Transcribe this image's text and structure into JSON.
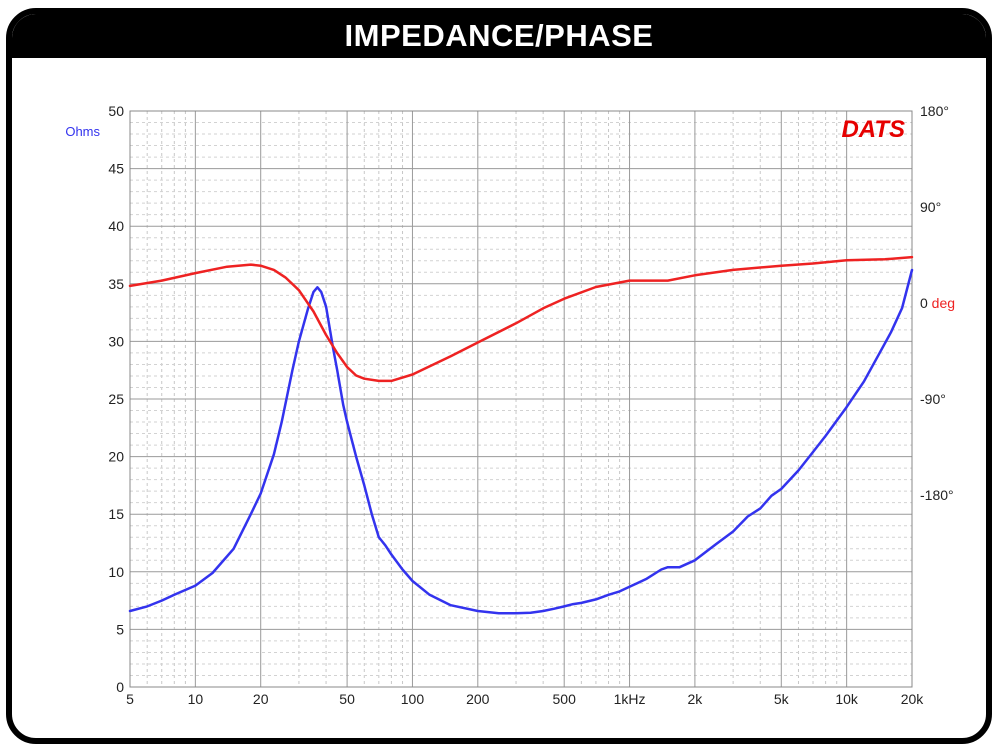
{
  "title": "IMPEDANCE/PHASE",
  "brand": "DATS",
  "colors": {
    "impedance": "#3333ee",
    "phase": "#ee2222",
    "brand": "#e60000",
    "frame": "#000000"
  },
  "chart_data": {
    "type": "line",
    "title": "IMPEDANCE/PHASE",
    "x_scale": "log",
    "xlim": [
      5,
      20000
    ],
    "x_ticks": [
      {
        "v": 5,
        "label": "5"
      },
      {
        "v": 10,
        "label": "10"
      },
      {
        "v": 20,
        "label": "20"
      },
      {
        "v": 50,
        "label": "50"
      },
      {
        "v": 100,
        "label": "100"
      },
      {
        "v": 200,
        "label": "200"
      },
      {
        "v": 500,
        "label": "500"
      },
      {
        "v": 1000,
        "label": "1kHz"
      },
      {
        "v": 2000,
        "label": "2k"
      },
      {
        "v": 5000,
        "label": "5k"
      },
      {
        "v": 10000,
        "label": "10k"
      },
      {
        "v": 20000,
        "label": "20k"
      }
    ],
    "y_left": {
      "label": "Ohms",
      "lim": [
        0,
        50
      ],
      "ticks": [
        {
          "v": 0,
          "label": "0"
        },
        {
          "v": 5,
          "label": "5"
        },
        {
          "v": 10,
          "label": "10"
        },
        {
          "v": 15,
          "label": "15"
        },
        {
          "v": 20,
          "label": "20"
        },
        {
          "v": 25,
          "label": "25"
        },
        {
          "v": 30,
          "label": "30"
        },
        {
          "v": 35,
          "label": "35"
        },
        {
          "v": 40,
          "label": "40"
        },
        {
          "v": 45,
          "label": "45"
        },
        {
          "v": 50,
          "label": "50"
        }
      ]
    },
    "y_right": {
      "lim": [
        -360,
        180
      ],
      "ticks": [
        {
          "v": 180,
          "label": "180°"
        },
        {
          "v": 90,
          "label": "90°"
        },
        {
          "v": 0,
          "label": "0",
          "unit": "deg"
        },
        {
          "v": -90,
          "label": "-90°"
        },
        {
          "v": -180,
          "label": "-180°"
        }
      ]
    },
    "grid": true,
    "series": [
      {
        "axis": "left",
        "color": "#3333ee",
        "points": [
          [
            5,
            6.6
          ],
          [
            6,
            7.0
          ],
          [
            7,
            7.5
          ],
          [
            8,
            8.0
          ],
          [
            10,
            8.8
          ],
          [
            12,
            9.9
          ],
          [
            15,
            12.0
          ],
          [
            18,
            15.0
          ],
          [
            20,
            16.8
          ],
          [
            23,
            20.2
          ],
          [
            25,
            23.0
          ],
          [
            28,
            27.5
          ],
          [
            30,
            30.0
          ],
          [
            33,
            32.8
          ],
          [
            35,
            34.3
          ],
          [
            36.5,
            34.7
          ],
          [
            38,
            34.3
          ],
          [
            40,
            33.0
          ],
          [
            43,
            29.5
          ],
          [
            45,
            27.5
          ],
          [
            48,
            24.5
          ],
          [
            50,
            23.0
          ],
          [
            55,
            20.0
          ],
          [
            60,
            17.5
          ],
          [
            65,
            15.0
          ],
          [
            70,
            13.0
          ],
          [
            75,
            12.3
          ],
          [
            80,
            11.5
          ],
          [
            90,
            10.2
          ],
          [
            100,
            9.2
          ],
          [
            120,
            8.0
          ],
          [
            150,
            7.1
          ],
          [
            200,
            6.6
          ],
          [
            250,
            6.4
          ],
          [
            300,
            6.4
          ],
          [
            350,
            6.45
          ],
          [
            400,
            6.6
          ],
          [
            450,
            6.8
          ],
          [
            500,
            7.0
          ],
          [
            550,
            7.2
          ],
          [
            600,
            7.3
          ],
          [
            700,
            7.6
          ],
          [
            800,
            8.0
          ],
          [
            900,
            8.3
          ],
          [
            1000,
            8.7
          ],
          [
            1200,
            9.4
          ],
          [
            1400,
            10.2
          ],
          [
            1500,
            10.4
          ],
          [
            1700,
            10.4
          ],
          [
            2000,
            11.0
          ],
          [
            2500,
            12.4
          ],
          [
            3000,
            13.5
          ],
          [
            3500,
            14.8
          ],
          [
            4000,
            15.5
          ],
          [
            4500,
            16.6
          ],
          [
            5000,
            17.2
          ],
          [
            6000,
            18.8
          ],
          [
            7000,
            20.4
          ],
          [
            8000,
            21.8
          ],
          [
            10000,
            24.3
          ],
          [
            12000,
            26.5
          ],
          [
            14000,
            28.8
          ],
          [
            16000,
            30.8
          ],
          [
            18000,
            32.9
          ],
          [
            20000,
            36.2
          ]
        ]
      },
      {
        "axis": "right",
        "color": "#ee2222",
        "points": [
          [
            5,
            16
          ],
          [
            7,
            21
          ],
          [
            10,
            28
          ],
          [
            14,
            34
          ],
          [
            18,
            36
          ],
          [
            20,
            35
          ],
          [
            23,
            31
          ],
          [
            26,
            24
          ],
          [
            30,
            12
          ],
          [
            35,
            -8
          ],
          [
            40,
            -30
          ],
          [
            45,
            -47
          ],
          [
            50,
            -60
          ],
          [
            55,
            -68
          ],
          [
            60,
            -71
          ],
          [
            70,
            -73
          ],
          [
            80,
            -73
          ],
          [
            100,
            -67
          ],
          [
            150,
            -50
          ],
          [
            200,
            -37
          ],
          [
            300,
            -19
          ],
          [
            400,
            -5
          ],
          [
            500,
            4
          ],
          [
            700,
            15
          ],
          [
            1000,
            21
          ],
          [
            1500,
            21
          ],
          [
            2000,
            26
          ],
          [
            3000,
            31
          ],
          [
            5000,
            35
          ],
          [
            7000,
            37
          ],
          [
            10000,
            40
          ],
          [
            15000,
            41
          ],
          [
            20000,
            43
          ]
        ]
      }
    ]
  }
}
